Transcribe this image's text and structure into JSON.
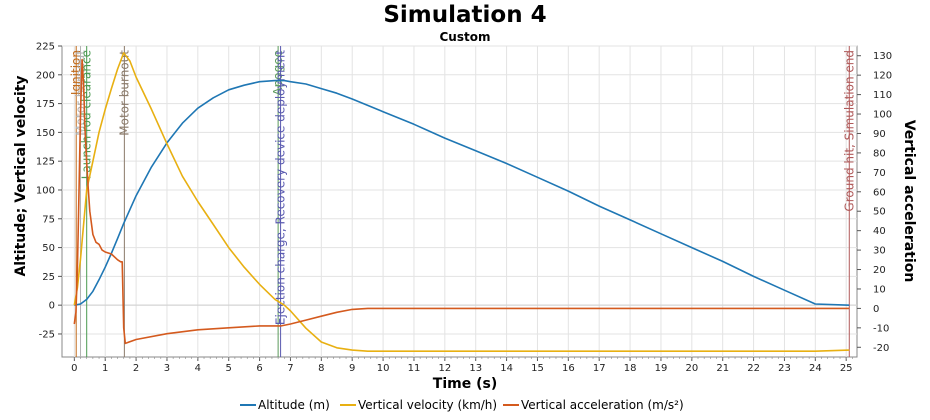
{
  "chart_data": {
    "type": "line",
    "title": "Simulation 4",
    "subtitle": "Custom",
    "xlabel": "Time (s)",
    "ylabel": "Altitude; Vertical velocity",
    "y2label": "Vertical acceleration",
    "xlim": [
      -0.4,
      25.35
    ],
    "ylim": [
      -45,
      225
    ],
    "y2lim": [
      -25,
      135
    ],
    "x_ticks": [
      0,
      1,
      2,
      3,
      4,
      5,
      6,
      7,
      8,
      9,
      10,
      11,
      12,
      13,
      14,
      15,
      16,
      17,
      18,
      19,
      20,
      21,
      22,
      23,
      24,
      25
    ],
    "y_ticks": [
      -25,
      0,
      25,
      50,
      75,
      100,
      125,
      150,
      175,
      200,
      225
    ],
    "y2_ticks": [
      -20,
      -10,
      0,
      10,
      20,
      30,
      40,
      50,
      60,
      70,
      80,
      90,
      100,
      110,
      120,
      130
    ],
    "grid": true,
    "legend_position": "bottom",
    "series": [
      {
        "name": "Altitude (m)",
        "axis": "left",
        "color": "#1f77b4",
        "x": [
          0,
          0.2,
          0.4,
          0.6,
          0.8,
          1.0,
          1.2,
          1.4,
          1.6,
          1.8,
          2.0,
          2.5,
          3.0,
          3.5,
          4.0,
          4.5,
          5.0,
          5.5,
          6.0,
          6.5,
          6.8,
          7.0,
          7.5,
          8.0,
          8.5,
          9.0,
          10,
          11,
          12,
          13,
          14,
          15,
          16,
          17,
          18,
          19,
          20,
          21,
          22,
          23,
          24,
          25.1
        ],
        "values": [
          0,
          1,
          5,
          12,
          22,
          33,
          45,
          58,
          71,
          83,
          95,
          120,
          141,
          158,
          171,
          180,
          187,
          191,
          194,
          195,
          195,
          194,
          192,
          188,
          184,
          179,
          168,
          157,
          145,
          134,
          123,
          111,
          99,
          86,
          74,
          62,
          50,
          38,
          25,
          13,
          1,
          0
        ]
      },
      {
        "name": "Vertical velocity (km/h)",
        "axis": "left",
        "color": "#e8b012",
        "x": [
          0,
          0.1,
          0.2,
          0.3,
          0.4,
          0.6,
          0.8,
          1.0,
          1.2,
          1.4,
          1.6,
          1.8,
          2.0,
          2.5,
          3.0,
          3.5,
          4.0,
          4.5,
          5.0,
          5.5,
          6.0,
          6.5,
          6.8,
          7.0,
          7.5,
          8.0,
          8.5,
          9.0,
          9.5,
          10,
          11,
          12,
          15,
          20,
          24,
          25.1
        ],
        "values": [
          0,
          15,
          40,
          70,
          100,
          125,
          150,
          170,
          188,
          205,
          219,
          212,
          198,
          170,
          140,
          112,
          90,
          70,
          50,
          33,
          18,
          5,
          0,
          -5,
          -20,
          -32,
          -37,
          -39,
          -40,
          -40,
          -40,
          -40,
          -40,
          -40,
          -40,
          -39
        ]
      },
      {
        "name": "Vertical acceleration (m/s²)",
        "axis": "right",
        "color": "#d45a1e",
        "x": [
          0,
          0.05,
          0.1,
          0.15,
          0.2,
          0.25,
          0.3,
          0.35,
          0.4,
          0.45,
          0.5,
          0.6,
          0.7,
          0.8,
          0.9,
          1.0,
          1.2,
          1.4,
          1.5,
          1.55,
          1.6,
          1.65,
          2.0,
          3.0,
          4.0,
          5.0,
          6.0,
          6.7,
          7.0,
          7.5,
          8.0,
          8.5,
          9.0,
          9.5,
          10,
          12,
          25.1
        ],
        "values": [
          -8,
          -2,
          20,
          60,
          100,
          128,
          115,
          90,
          75,
          62,
          50,
          38,
          34,
          33,
          30,
          29,
          28,
          25,
          24,
          24,
          -10,
          -18,
          -16,
          -13,
          -11,
          -10,
          -9,
          -9,
          -8,
          -6,
          -4,
          -2,
          -0.5,
          0,
          0,
          0,
          0
        ]
      }
    ],
    "events": [
      {
        "x": 0.06,
        "label": "Ignition",
        "color": "#c06a1a"
      },
      {
        "x": 0.2,
        "label": "Motor burnout",
        "color": "#b3b3b3"
      },
      {
        "x": 0.4,
        "label": "Launch rod clearance",
        "color": "#4a9a50"
      },
      {
        "x": 1.62,
        "label": "Motor burnout",
        "color": "#8a7a6a"
      },
      {
        "x": 6.6,
        "label": "Apogee",
        "color": "#5a9a5a"
      },
      {
        "x": 6.68,
        "label": "Ejection charge, Recovery device deployment",
        "color": "#5a5ab0"
      },
      {
        "x": 25.1,
        "label": "Ground hit, Simulation end",
        "color": "#b05a5a"
      }
    ]
  }
}
